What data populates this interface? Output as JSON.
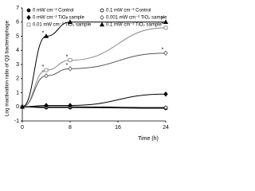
{
  "chart_data": {
    "type": "line",
    "x_label": "Time (h)",
    "y_label": "Log inactivation ratio of Qβ bacteriophage",
    "x": [
      0,
      4,
      8,
      24
    ],
    "xlim": [
      0,
      24
    ],
    "xticks": [
      0,
      8,
      16,
      24
    ],
    "ylim": [
      -1,
      7
    ],
    "yticks": [
      -1,
      0,
      1,
      2,
      3,
      4,
      5,
      6,
      7
    ],
    "significance_marker": "*",
    "series": [
      {
        "name": "0 mW cm⁻² Control",
        "color": "#000000",
        "marker": "circle",
        "filled": true,
        "values": [
          0,
          -0.05,
          -0.05,
          -0.1
        ]
      },
      {
        "name": "0.1 mW cm⁻² Control",
        "color": "#000000",
        "marker": "circle",
        "filled": false,
        "values": [
          0,
          0,
          0,
          -0.05
        ]
      },
      {
        "name": "0 mW cm⁻² TiO₂ sample",
        "color": "#000000",
        "marker": "diamond",
        "filled": true,
        "values": [
          0,
          0.1,
          0.1,
          0.9
        ]
      },
      {
        "name": "0.001 mW cm⁻² TiO₂ sample",
        "color": "#555555",
        "marker": "diamond",
        "filled": false,
        "values": [
          0,
          2.2,
          2.7,
          3.8
        ]
      },
      {
        "name": "0.01 mW cm⁻² TiO₂ sample",
        "color": "#888888",
        "marker": "square",
        "filled": false,
        "values": [
          0,
          2.6,
          3.3,
          5.6
        ]
      },
      {
        "name": "0.1 mW cm⁻² TiO₂ sample",
        "color": "#000000",
        "marker": "triangle",
        "filled": true,
        "values": [
          0,
          5.0,
          6.0,
          6.0
        ]
      }
    ]
  }
}
